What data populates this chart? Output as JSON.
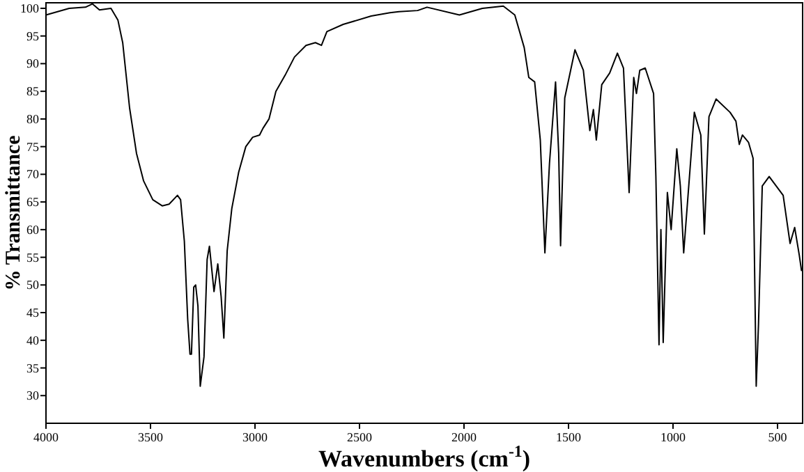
{
  "chart_data": {
    "type": "line",
    "xlabel": "Wavenumbers (cm$^{-1}$)",
    "ylabel": "% Transmittance",
    "xlim": [
      4000,
      380
    ],
    "ylim": [
      25,
      101
    ],
    "xticks": [
      4000,
      3500,
      3000,
      2500,
      2000,
      1500,
      1000,
      500
    ],
    "yticks": [
      30,
      35,
      40,
      45,
      50,
      55,
      60,
      65,
      70,
      75,
      80,
      85,
      90,
      95,
      100
    ],
    "marker": "none",
    "line_style": "solid",
    "series": [
      {
        "color": "#000000",
        "x": [
          4000,
          3889,
          3811,
          3778,
          3744,
          3689,
          3656,
          3633,
          3600,
          3567,
          3533,
          3489,
          3444,
          3411,
          3371,
          3356,
          3338,
          3322,
          3311,
          3304,
          3293,
          3284,
          3273,
          3262,
          3244,
          3229,
          3218,
          3196,
          3178,
          3162,
          3149,
          3133,
          3111,
          3078,
          3044,
          3011,
          2978,
          2962,
          2933,
          2900,
          2856,
          2811,
          2756,
          2711,
          2682,
          2656,
          2578,
          2444,
          2354,
          2311,
          2222,
          2177,
          2022,
          1912,
          1812,
          1757,
          1712,
          1690,
          1662,
          1635,
          1613,
          1591,
          1562,
          1547,
          1538,
          1518,
          1469,
          1429,
          1398,
          1381,
          1367,
          1341,
          1303,
          1266,
          1237,
          1210,
          1188,
          1175,
          1159,
          1133,
          1093,
          1082,
          1067,
          1058,
          1047,
          1027,
          1009,
          982,
          965,
          949,
          898,
          867,
          850,
          828,
          794,
          727,
          699,
          683,
          668,
          639,
          617,
          602,
          591,
          573,
          540,
          473,
          440,
          418,
          396,
          385
        ],
        "values": [
          98.8,
          100,
          100.2,
          100.8,
          99.7,
          100,
          97.9,
          93.8,
          82,
          73.8,
          68.8,
          65.4,
          64.3,
          64.6,
          66.2,
          65.4,
          57.9,
          43.8,
          37.5,
          37.5,
          49.6,
          50,
          46.2,
          31.7,
          37,
          54.6,
          57,
          48.8,
          53.8,
          47.9,
          40.4,
          56.2,
          63.8,
          70.4,
          75,
          76.7,
          77.1,
          78.3,
          80,
          85,
          87.9,
          91.2,
          93.3,
          93.8,
          93.3,
          95.8,
          97.1,
          98.6,
          99.2,
          99.4,
          99.6,
          100.2,
          98.8,
          100,
          100.4,
          98.8,
          92.9,
          87.5,
          86.7,
          76.2,
          55.8,
          72,
          86.7,
          73.8,
          57.1,
          83.8,
          92.5,
          88.8,
          77.9,
          81.7,
          76.2,
          86.2,
          88.3,
          91.9,
          89.2,
          66.7,
          87.5,
          84.6,
          88.8,
          89.2,
          84.6,
          69.6,
          39.2,
          60,
          39.6,
          66.7,
          60,
          74.6,
          67.9,
          55.8,
          81.2,
          77.1,
          59.2,
          80.4,
          83.6,
          81.2,
          79.6,
          75.4,
          77.1,
          75.8,
          72.9,
          31.7,
          42.9,
          67.9,
          69.6,
          66.2,
          57.5,
          60.4,
          55.4,
          52.5
        ]
      }
    ]
  }
}
